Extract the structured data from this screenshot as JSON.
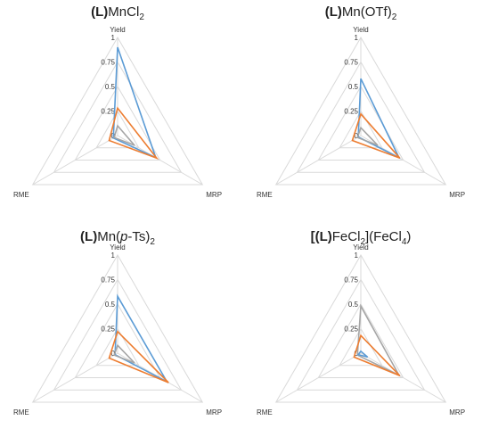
{
  "colors": {
    "blue": "#5b9bd5",
    "orange": "#ed7d31",
    "gray": "#a5a5a5",
    "grid": "#d9d9d9"
  },
  "chart_data": [
    {
      "type": "radar",
      "title": [
        {
          "t": "(",
          "b": true
        },
        {
          "t": "L",
          "b": true
        },
        {
          "t": ")",
          "b": true
        },
        {
          "t": "MnCl"
        },
        {
          "t": "2",
          "sub": true
        }
      ],
      "axes": [
        "Yield",
        "MRP",
        "RME"
      ],
      "ticks": [
        "0",
        "0.25",
        "0.5",
        "0.75",
        "1"
      ],
      "tick_values": [
        0,
        0.25,
        0.5,
        0.75,
        1
      ],
      "series": [
        {
          "color": "#5b9bd5",
          "values": [
            0.9,
            0.45,
            0.05
          ]
        },
        {
          "color": "#ed7d31",
          "values": [
            0.28,
            0.46,
            0.1
          ]
        },
        {
          "color": "#a5a5a5",
          "values": [
            0.1,
            0.2,
            0.04
          ]
        }
      ]
    },
    {
      "type": "radar",
      "title": [
        {
          "t": "(",
          "b": true
        },
        {
          "t": "L",
          "b": true
        },
        {
          "t": ")",
          "b": true
        },
        {
          "t": "Mn(OTf)"
        },
        {
          "t": "2",
          "sub": true
        }
      ],
      "axes": [
        "Yield",
        "MRP",
        "RME"
      ],
      "ticks": [
        "0",
        "0.25",
        "0.5",
        "0.75",
        "1"
      ],
      "tick_values": [
        0,
        0.25,
        0.5,
        0.75,
        1
      ],
      "series": [
        {
          "color": "#5b9bd5",
          "values": [
            0.58,
            0.45,
            0.03
          ]
        },
        {
          "color": "#ed7d31",
          "values": [
            0.22,
            0.46,
            0.1
          ]
        },
        {
          "color": "#a5a5a5",
          "values": [
            0.08,
            0.2,
            0.04
          ]
        }
      ]
    },
    {
      "type": "radar",
      "title": [
        {
          "t": "(",
          "b": true
        },
        {
          "t": "L",
          "b": true
        },
        {
          "t": ")",
          "b": true
        },
        {
          "t": "Mn("
        },
        {
          "t": "p",
          "i": true
        },
        {
          "t": "-Ts)"
        },
        {
          "t": "2",
          "sub": true
        }
      ],
      "axes": [
        "Yield",
        "MRP",
        "RME"
      ],
      "ticks": [
        "0",
        "0.25",
        "0.5",
        "0.75",
        "1"
      ],
      "tick_values": [
        0,
        0.25,
        0.5,
        0.75,
        1
      ],
      "series": [
        {
          "color": "#5b9bd5",
          "values": [
            0.58,
            0.58,
            0.03
          ]
        },
        {
          "color": "#ed7d31",
          "values": [
            0.22,
            0.6,
            0.1
          ]
        },
        {
          "color": "#a5a5a5",
          "values": [
            0.08,
            0.2,
            0.04
          ]
        }
      ]
    },
    {
      "type": "radar",
      "title": [
        {
          "t": "[(",
          "b": true
        },
        {
          "t": "L",
          "b": true
        },
        {
          "t": ")",
          "b": true
        },
        {
          "t": "FeCl"
        },
        {
          "t": "2",
          "sub": true
        },
        {
          "t": "](FeCl"
        },
        {
          "t": "4",
          "sub": true
        },
        {
          "t": ")"
        }
      ],
      "axes": [
        "Yield",
        "MRP",
        "RME"
      ],
      "ticks": [
        "0",
        "0.25",
        "0.5",
        "0.75",
        "1"
      ],
      "tick_values": [
        0,
        0.25,
        0.5,
        0.75,
        1
      ],
      "series": [
        {
          "color": "#a5a5a5",
          "values": [
            0.48,
            0.45,
            0.04
          ]
        },
        {
          "color": "#ed7d31",
          "values": [
            0.18,
            0.46,
            0.08
          ]
        },
        {
          "color": "#5b9bd5",
          "values": [
            0.02,
            0.08,
            0.03
          ]
        }
      ]
    }
  ]
}
